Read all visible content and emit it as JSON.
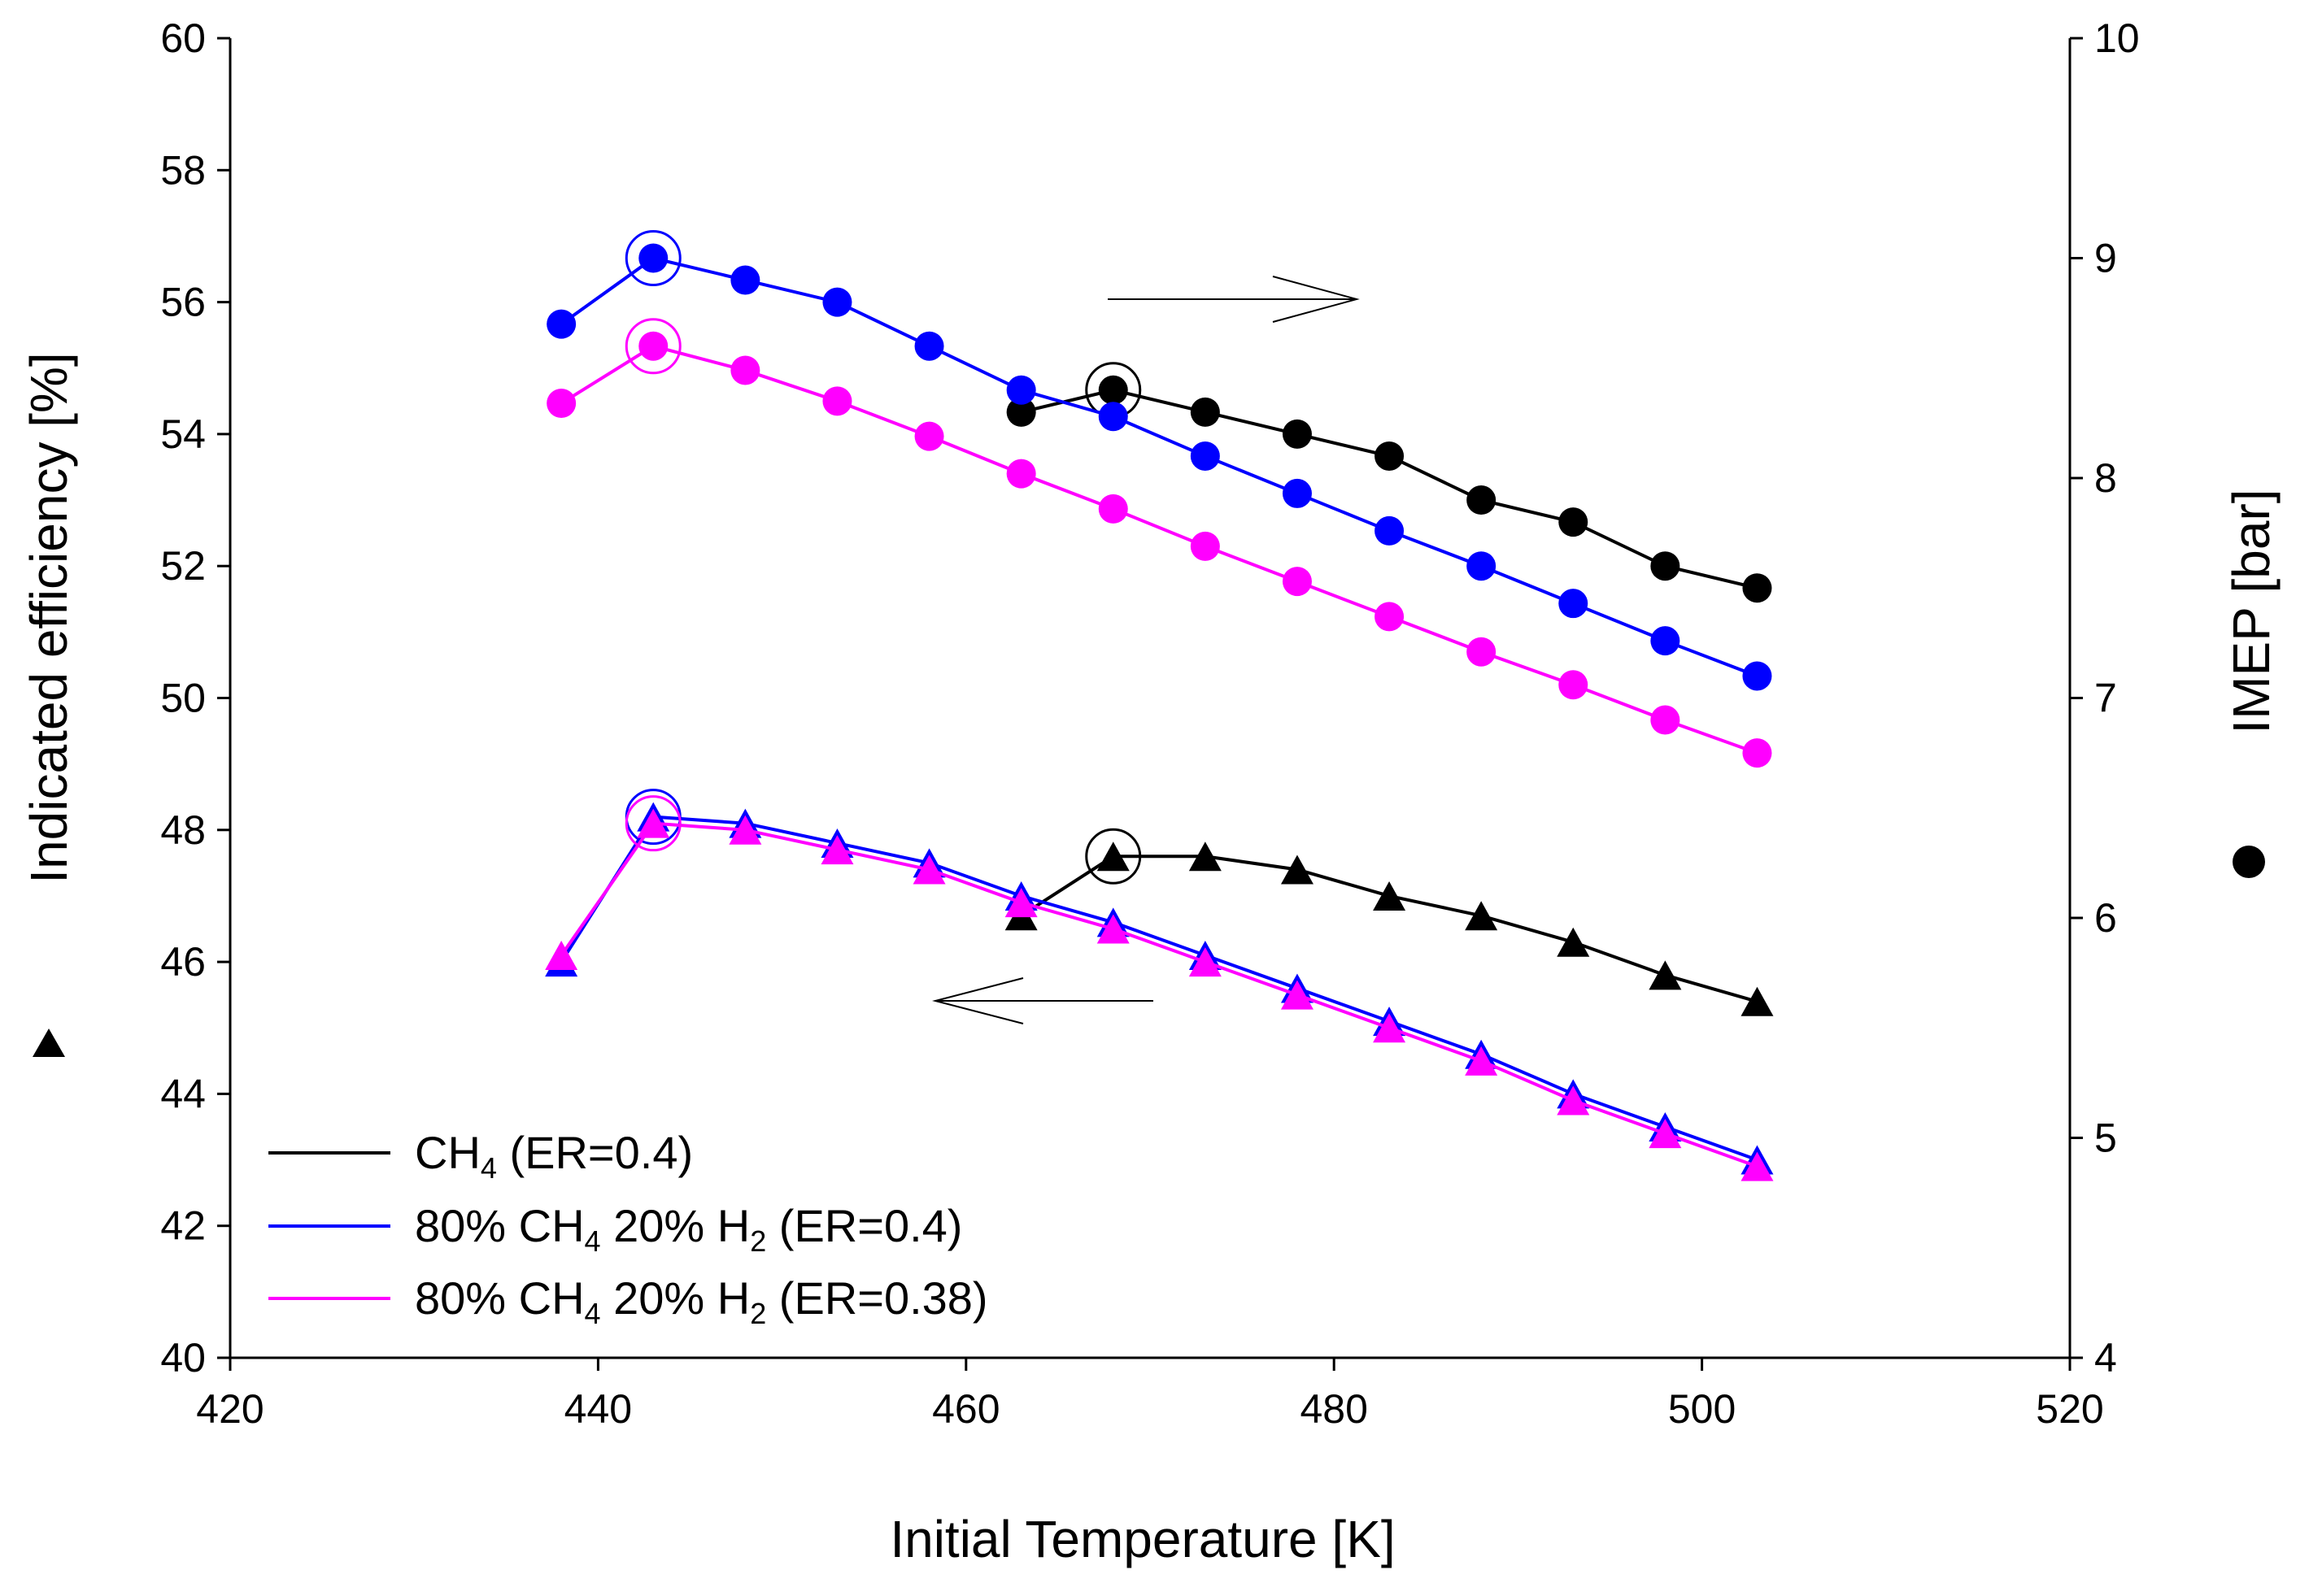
{
  "chart_data": {
    "type": "line",
    "title": "",
    "xlabel": "Initial Temperature [K]",
    "ylabel_left": "Indicated efficiency [%]",
    "ylabel_right": "IMEP [bar]",
    "xlim": [
      420,
      520
    ],
    "ylim_left": [
      40,
      60
    ],
    "ylim_right": [
      4,
      10
    ],
    "x_ticks": [
      "420",
      "440",
      "460",
      "480",
      "500",
      "520"
    ],
    "y_left_ticks": [
      "40",
      "42",
      "44",
      "46",
      "48",
      "50",
      "52",
      "54",
      "56",
      "58",
      "60"
    ],
    "y_right_ticks": [
      "4",
      "5",
      "6",
      "7",
      "8",
      "9",
      "10"
    ],
    "grid": false,
    "legend_position": "bottom-left",
    "left_axis_marker": "triangle",
    "right_axis_marker": "circle",
    "legend": [
      {
        "main": "CH",
        "sub1": "4",
        "rest": " (ER=0.4)",
        "sub2": "",
        "tail": "",
        "color": "#000000"
      },
      {
        "main": "80% CH",
        "sub1": "4",
        "rest": " 20% H",
        "sub2": "2",
        "tail": " (ER=0.4)",
        "color": "#0000ff"
      },
      {
        "main": "80% CH",
        "sub1": "4",
        "rest": " 20% H",
        "sub2": "2",
        "tail": " (ER=0.38)",
        "color": "#ff00ff"
      }
    ],
    "series": [
      {
        "name": "CH4 (ER=0.4) efficiency",
        "axis": "left",
        "marker": "triangle",
        "color": "#000000",
        "line_color": "#000000",
        "x": [
          463,
          468,
          473,
          478,
          483,
          488,
          493,
          498,
          503
        ],
        "y": [
          46.7,
          47.6,
          47.6,
          47.4,
          47.0,
          46.7,
          46.3,
          45.8,
          45.4
        ],
        "highlight_x": 468
      },
      {
        "name": "80% CH4 20% H2 (ER=0.4) efficiency",
        "axis": "left",
        "marker": "triangle",
        "color": "#0000ff",
        "line_color": "#0000ff",
        "x": [
          438,
          443,
          448,
          453,
          458,
          463,
          468,
          473,
          478,
          483,
          488,
          493,
          498,
          503
        ],
        "y": [
          46.0,
          48.2,
          48.1,
          47.8,
          47.5,
          47.0,
          46.6,
          46.1,
          45.6,
          45.1,
          44.6,
          44.0,
          43.5,
          43.0
        ],
        "highlight_x": 443
      },
      {
        "name": "80% CH4 20% H2 (ER=0.38) efficiency",
        "axis": "left",
        "marker": "triangle",
        "color": "#ff00ff",
        "line_color": "#ff00ff",
        "x": [
          438,
          443,
          448,
          453,
          458,
          463,
          468,
          473,
          478,
          483,
          488,
          493,
          498,
          503
        ],
        "y": [
          46.1,
          48.1,
          48.0,
          47.7,
          47.4,
          46.9,
          46.5,
          46.0,
          45.5,
          45.0,
          44.5,
          43.9,
          43.4,
          42.9
        ],
        "highlight_x": 443
      },
      {
        "name": "CH4 (ER=0.4) IMEP",
        "axis": "right",
        "marker": "circle",
        "color": "#000000",
        "line_color": "#000000",
        "x": [
          463,
          468,
          473,
          478,
          483,
          488,
          493,
          498,
          503
        ],
        "y": [
          8.3,
          8.4,
          8.3,
          8.2,
          8.1,
          7.9,
          7.8,
          7.6,
          7.5
        ],
        "highlight_x": 468
      },
      {
        "name": "80% CH4 20% H2 (ER=0.4) IMEP",
        "axis": "right",
        "marker": "circle",
        "color": "#0000ff",
        "line_color": "#0000ff",
        "x": [
          438,
          443,
          448,
          453,
          458,
          463,
          468,
          473,
          478,
          483,
          488,
          493,
          498,
          503
        ],
        "y": [
          8.7,
          9.0,
          8.9,
          8.8,
          8.6,
          8.4,
          8.28,
          8.1,
          7.93,
          7.76,
          7.6,
          7.43,
          7.26,
          7.1
        ],
        "highlight_x": 443
      },
      {
        "name": "80% CH4 20% H2 (ER=0.38) IMEP",
        "axis": "right",
        "marker": "circle",
        "color": "#ff00ff",
        "line_color": "#ff00ff",
        "x": [
          438,
          443,
          448,
          453,
          458,
          463,
          468,
          473,
          478,
          483,
          488,
          493,
          498,
          503
        ],
        "y": [
          8.34,
          8.6,
          8.49,
          8.35,
          8.19,
          8.02,
          7.86,
          7.69,
          7.53,
          7.37,
          7.21,
          7.06,
          6.9,
          6.75
        ],
        "highlight_x": 443
      }
    ]
  }
}
